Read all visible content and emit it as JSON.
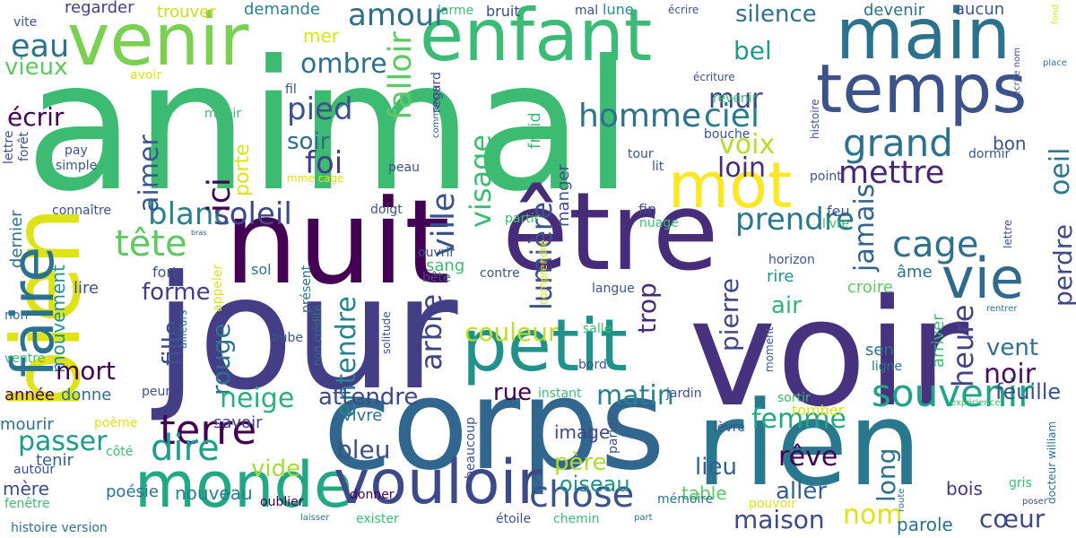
{
  "cloud": {
    "words": [
      {
        "text": "animal",
        "color": "#3dbb73",
        "vertical": false
      },
      {
        "text": "jour",
        "color": "#433e85",
        "vertical": false
      },
      {
        "text": "voir",
        "color": "#46327e",
        "vertical": false
      },
      {
        "text": "corps",
        "color": "#31668e",
        "vertical": false
      },
      {
        "text": "rien",
        "color": "#2a788e",
        "vertical": false
      },
      {
        "text": "nuit",
        "color": "#440154",
        "vertical": false
      },
      {
        "text": "être",
        "color": "#472c7a",
        "vertical": false
      },
      {
        "text": "bien",
        "color": "#dde318",
        "vertical": true
      },
      {
        "text": "enfant",
        "color": "#3bbb75",
        "vertical": false
      },
      {
        "text": "venir",
        "color": "#7ad151",
        "vertical": false
      },
      {
        "text": "main",
        "color": "#2c728e",
        "vertical": false
      },
      {
        "text": "temps",
        "color": "#3b528b",
        "vertical": false
      },
      {
        "text": "petit",
        "color": "#21918c",
        "vertical": false
      },
      {
        "text": "monde",
        "color": "#22a884",
        "vertical": false
      },
      {
        "text": "vouloir",
        "color": "#3e4989",
        "vertical": false
      },
      {
        "text": "faire",
        "color": "#2c728e",
        "vertical": true
      },
      {
        "text": "mot",
        "color": "#fde725",
        "vertical": false
      },
      {
        "text": "vie",
        "color": "#31688e",
        "vertical": false
      },
      {
        "text": "souvenir",
        "color": "#20a386",
        "vertical": false
      },
      {
        "text": "chose",
        "color": "#3b528b",
        "vertical": false
      },
      {
        "text": "grand",
        "color": "#2c728e",
        "vertical": false
      },
      {
        "text": "terre",
        "color": "#440154",
        "vertical": false
      },
      {
        "text": "dire",
        "color": "#1f9e89",
        "vertical": false
      },
      {
        "text": "tête",
        "color": "#5ec962",
        "vertical": false
      },
      {
        "text": "blanc",
        "color": "#26828e",
        "vertical": false
      },
      {
        "text": "soleil",
        "color": "#3e4989",
        "vertical": false
      },
      {
        "text": "prendre",
        "color": "#2a788e",
        "vertical": false
      },
      {
        "text": "cage",
        "color": "#2c728e",
        "vertical": false
      },
      {
        "text": "mettre",
        "color": "#482576",
        "vertical": false
      },
      {
        "text": "ciel",
        "color": "#287c8e",
        "vertical": false
      },
      {
        "text": "homme",
        "color": "#2c728e",
        "vertical": false
      },
      {
        "text": "pied",
        "color": "#3b528b",
        "vertical": false
      },
      {
        "text": "foi",
        "color": "#433e85",
        "vertical": false
      },
      {
        "text": "soir",
        "color": "#306a8e",
        "vertical": false
      },
      {
        "text": "loin",
        "color": "#472d7b",
        "vertical": false
      },
      {
        "text": "voix",
        "color": "#b5de2b",
        "vertical": false
      },
      {
        "text": "mur",
        "color": "#404688",
        "vertical": false
      },
      {
        "text": "bel",
        "color": "#1f9a8a",
        "vertical": false
      },
      {
        "text": "amour",
        "color": "#2e6f8e",
        "vertical": false
      },
      {
        "text": "silence",
        "color": "#2c728e",
        "vertical": false
      },
      {
        "text": "ombre",
        "color": "#2d708e",
        "vertical": false
      },
      {
        "text": "eau",
        "color": "#2c738e",
        "vertical": false
      },
      {
        "text": "vieux",
        "color": "#5ec962",
        "vertical": false
      },
      {
        "text": "écrir",
        "color": "#440154",
        "vertical": false
      },
      {
        "text": "aimer",
        "color": "#38598c",
        "vertical": true
      },
      {
        "text": "ici",
        "color": "#440154",
        "vertical": true
      },
      {
        "text": "falloir",
        "color": "#5ec962",
        "vertical": true
      },
      {
        "text": "visage",
        "color": "#3dbc74",
        "vertical": true
      },
      {
        "text": "ville",
        "color": "#3b528b",
        "vertical": true
      },
      {
        "text": "lumière",
        "color": "#3b528b",
        "vertical": true
      },
      {
        "text": "entendre",
        "color": "#26828e",
        "vertical": true
      },
      {
        "text": "arbre",
        "color": "#414487",
        "vertical": true
      },
      {
        "text": "pierre",
        "color": "#404688",
        "vertical": true
      },
      {
        "text": "trop",
        "color": "#482878",
        "vertical": true
      },
      {
        "text": "jamais",
        "color": "#33638d",
        "vertical": true
      },
      {
        "text": "oeil",
        "color": "#2a788e",
        "vertical": true
      },
      {
        "text": "perdre",
        "color": "#3e4989",
        "vertical": true
      },
      {
        "text": "heure",
        "color": "#414487",
        "vertical": true
      },
      {
        "text": "long",
        "color": "#2c728e",
        "vertical": true
      },
      {
        "text": "rouge",
        "color": "#2c728e",
        "vertical": true
      },
      {
        "text": "fille",
        "color": "#3b528b",
        "vertical": true
      },
      {
        "text": "mouvement",
        "color": "#21918c",
        "vertical": true
      },
      {
        "text": "dernier",
        "color": "#2c728e",
        "vertical": true
      },
      {
        "text": "forme",
        "color": "#433e85",
        "vertical": false
      },
      {
        "text": "air",
        "color": "#34b679",
        "vertical": false
      },
      {
        "text": "couleur",
        "color": "#bddf26",
        "vertical": false
      },
      {
        "text": "mort",
        "color": "#440154",
        "vertical": false
      },
      {
        "text": "neige",
        "color": "#2ab07f",
        "vertical": false
      },
      {
        "text": "attendre",
        "color": "#3e4989",
        "vertical": false
      },
      {
        "text": "matin",
        "color": "#26828e",
        "vertical": false
      },
      {
        "text": "rue",
        "color": "#440154",
        "vertical": false
      },
      {
        "text": "femme",
        "color": "#22a884",
        "vertical": false
      },
      {
        "text": "rêve",
        "color": "#440154",
        "vertical": false
      },
      {
        "text": "noir",
        "color": "#471063",
        "vertical": false
      },
      {
        "text": "vent",
        "color": "#2c728e",
        "vertical": false
      },
      {
        "text": "feuille",
        "color": "#3b528b",
        "vertical": false
      },
      {
        "text": "passer",
        "color": "#1f9a8a",
        "vertical": false
      },
      {
        "text": "bleu",
        "color": "#3b528b",
        "vertical": false
      },
      {
        "text": "vide",
        "color": "#a5db36",
        "vertical": false
      },
      {
        "text": "aller",
        "color": "#34608d",
        "vertical": false
      },
      {
        "text": "lieu",
        "color": "#34608d",
        "vertical": false
      },
      {
        "text": "maison",
        "color": "#3e4989",
        "vertical": false
      },
      {
        "text": "nom",
        "color": "#dde318",
        "vertical": false
      },
      {
        "text": "cœur",
        "color": "#3e4989",
        "vertical": false
      },
      {
        "text": "bois",
        "color": "#46337f",
        "vertical": false
      },
      {
        "text": "père",
        "color": "#addc30",
        "vertical": false
      },
      {
        "text": "oiseau",
        "color": "#21918c",
        "vertical": false
      },
      {
        "text": "image",
        "color": "#3e4989",
        "vertical": false
      },
      {
        "text": "table",
        "color": "#5ec962",
        "vertical": false
      },
      {
        "text": "parole",
        "color": "#2c728e",
        "vertical": false
      },
      {
        "text": "nouveau",
        "color": "#26828e",
        "vertical": false
      },
      {
        "text": "mère",
        "color": "#3e4989",
        "vertical": false
      },
      {
        "text": "poésie",
        "color": "#2c728e",
        "vertical": false
      },
      {
        "text": "tenir",
        "color": "#33638d",
        "vertical": false
      },
      {
        "text": "mourir",
        "color": "#2c728e",
        "vertical": false
      },
      {
        "text": "année",
        "color": "#440154",
        "vertical": false
      },
      {
        "text": "donne",
        "color": "#2e6e8e",
        "vertical": false
      },
      {
        "text": "savoir",
        "color": "#424086",
        "vertical": false
      },
      {
        "text": "vivre",
        "color": "#2d708e",
        "vertical": false
      },
      {
        "text": "tomber",
        "color": "#dde318",
        "vertical": false
      },
      {
        "text": "regarder",
        "color": "#424086",
        "vertical": false
      },
      {
        "text": "trouver",
        "color": "#c8e020",
        "vertical": false
      },
      {
        "text": "demande",
        "color": "#26828e",
        "vertical": false
      },
      {
        "text": "bruit",
        "color": "#3e4989",
        "vertical": false
      },
      {
        "text": "lune",
        "color": "#21918c",
        "vertical": false
      },
      {
        "text": "devenir",
        "color": "#2c728e",
        "vertical": false
      },
      {
        "text": "aucun",
        "color": "#3b528b",
        "vertical": false
      },
      {
        "text": "mer",
        "color": "#dde318",
        "vertical": false
      },
      {
        "text": "bon",
        "color": "#3b528b",
        "vertical": false
      },
      {
        "text": "sang",
        "color": "#3dbb73",
        "vertical": false
      },
      {
        "text": "lire",
        "color": "#3b528b",
        "vertical": false
      },
      {
        "text": "croire",
        "color": "#5ec962",
        "vertical": false
      },
      {
        "text": "âme",
        "color": "#2c728e",
        "vertical": false
      },
      {
        "text": "rire",
        "color": "#21918c",
        "vertical": false
      },
      {
        "text": "sen",
        "color": "#2c728e",
        "vertical": false
      },
      {
        "text": "fort",
        "color": "#3b528b",
        "vertical": false
      },
      {
        "text": "sol",
        "color": "#2c728e",
        "vertical": false
      },
      {
        "text": "feu",
        "color": "#3b528b",
        "vertical": false
      },
      {
        "text": "fin",
        "color": "#3b528b",
        "vertical": false
      },
      {
        "text": "porte",
        "color": "#dde318",
        "vertical": true
      },
      {
        "text": "froid",
        "color": "#3dbb73",
        "vertical": true
      },
      {
        "text": "manger",
        "color": "#3b528b",
        "vertical": true
      },
      {
        "text": "arriver",
        "color": "#3dbb73",
        "vertical": true
      },
      {
        "text": "histoire version",
        "color": "#2c728e",
        "vertical": false
      },
      {
        "text": "fenêtre",
        "color": "#3dbb73",
        "vertical": false
      },
      {
        "text": "autour",
        "color": "#3b528b",
        "vertical": false
      },
      {
        "text": "côté",
        "color": "#3dbb73",
        "vertical": false
      },
      {
        "text": "poème",
        "color": "#dde318",
        "vertical": false
      },
      {
        "text": "peur",
        "color": "#3b528b",
        "vertical": false
      },
      {
        "text": "ventre",
        "color": "#3dbb73",
        "vertical": false
      },
      {
        "text": "non",
        "color": "#2c728e",
        "vertical": false
      },
      {
        "text": "aube",
        "color": "#3b528b",
        "vertical": false
      },
      {
        "text": "bord",
        "color": "#3b528b",
        "vertical": false
      },
      {
        "text": "salle",
        "color": "#3dbb73",
        "vertical": false
      },
      {
        "text": "instant",
        "color": "#3dbb73",
        "vertical": false
      },
      {
        "text": "jardin",
        "color": "#3b528b",
        "vertical": false
      },
      {
        "text": "sortir",
        "color": "#3dbb73",
        "vertical": false
      },
      {
        "text": "ligne",
        "color": "#2c728e",
        "vertical": false
      },
      {
        "text": "langue",
        "color": "#3b528b",
        "vertical": false
      },
      {
        "text": "horizon",
        "color": "#3b528b",
        "vertical": false
      },
      {
        "text": "contre",
        "color": "#3b528b",
        "vertical": false
      },
      {
        "text": "ouvrir",
        "color": "#3b528b",
        "vertical": false
      },
      {
        "text": "bête",
        "color": "#3b528b",
        "vertical": false
      },
      {
        "text": "nuage",
        "color": "#3dbb73",
        "vertical": false
      },
      {
        "text": "livre",
        "color": "#3dbb73",
        "vertical": false
      },
      {
        "text": "doigt",
        "color": "#3b528b",
        "vertical": false
      },
      {
        "text": "partir",
        "color": "#3dbb73",
        "vertical": false
      },
      {
        "text": "connaître",
        "color": "#3b528b",
        "vertical": false
      },
      {
        "text": "appeler",
        "color": "#dde318",
        "vertical": true
      },
      {
        "text": "présent",
        "color": "#2c728e",
        "vertical": true
      },
      {
        "text": "lèvre",
        "color": "#3b528b",
        "vertical": false
      },
      {
        "text": "mémoire",
        "color": "#2c728e",
        "vertical": false
      },
      {
        "text": "pouvoir",
        "color": "#dde318",
        "vertical": false
      },
      {
        "text": "part",
        "color": "#2c728e",
        "vertical": false
      },
      {
        "text": "étoile",
        "color": "#3b528b",
        "vertical": false
      },
      {
        "text": "chemin",
        "color": "#3dbb73",
        "vertical": false
      },
      {
        "text": "exister",
        "color": "#3dbb73",
        "vertical": false
      },
      {
        "text": "laisser",
        "color": "#2c728e",
        "vertical": false
      },
      {
        "text": "oublier",
        "color": "#440154",
        "vertical": false
      },
      {
        "text": "donner",
        "color": "#440154",
        "vertical": false
      },
      {
        "text": "gris",
        "color": "#3dbb73",
        "vertical": false
      },
      {
        "text": "poser",
        "color": "#3b528b",
        "vertical": false
      },
      {
        "text": "expérience",
        "color": "#3dbb73",
        "vertical": false
      },
      {
        "text": "rentrer",
        "color": "#2c728e",
        "vertical": false
      },
      {
        "text": "vite",
        "color": "#3b528b",
        "vertical": false
      },
      {
        "text": "larme",
        "color": "#3dbb73",
        "vertical": false
      },
      {
        "text": "mal",
        "color": "#3b528b",
        "vertical": false
      },
      {
        "text": "écrire",
        "color": "#3b528b",
        "vertical": false
      },
      {
        "text": "avoir",
        "color": "#dde318",
        "vertical": false
      },
      {
        "text": "fil",
        "color": "#3b528b",
        "vertical": false
      },
      {
        "text": "miroir",
        "color": "#3dbb73",
        "vertical": false
      },
      {
        "text": "revenir",
        "color": "#3dbb73",
        "vertical": false
      },
      {
        "text": "écriture",
        "color": "#3b528b",
        "vertical": false
      },
      {
        "text": "bouche",
        "color": "#3b528b",
        "vertical": false
      },
      {
        "text": "tour",
        "color": "#3b528b",
        "vertical": false
      },
      {
        "text": "lit",
        "color": "#3b528b",
        "vertical": false
      },
      {
        "text": "point",
        "color": "#3b528b",
        "vertical": false
      },
      {
        "text": "dormir",
        "color": "#3b528b",
        "vertical": false
      },
      {
        "text": "pay",
        "color": "#3b528b",
        "vertical": false
      },
      {
        "text": "simple",
        "color": "#3b528b",
        "vertical": false
      },
      {
        "text": "peau",
        "color": "#3b528b",
        "vertical": false
      },
      {
        "text": "mme cage",
        "color": "#dde318",
        "vertical": false
      },
      {
        "text": "bras",
        "color": "#3b528b",
        "vertical": false
      },
      {
        "text": "place",
        "color": "#2c728e",
        "vertical": false
      },
      {
        "text": "fond",
        "color": "#dde318",
        "vertical": true
      },
      {
        "text": "écrire nom",
        "color": "#3b528b",
        "vertical": true
      },
      {
        "text": "commencer",
        "color": "#3b528b",
        "vertical": true
      },
      {
        "text": "regard",
        "color": "#3b528b",
        "vertical": true
      },
      {
        "text": "histoire",
        "color": "#3b528b",
        "vertical": true
      },
      {
        "text": "lettre",
        "color": "#3b528b",
        "vertical": true
      },
      {
        "text": "forêt",
        "color": "#3b528b",
        "vertical": true
      },
      {
        "text": "lettre",
        "color": "#3b528b",
        "vertical": true
      },
      {
        "text": "non crédité",
        "color": "#2c728e",
        "vertical": true
      },
      {
        "text": "solitude",
        "color": "#3b528b",
        "vertical": true
      },
      {
        "text": "comprendre",
        "color": "#dde318",
        "vertical": true
      },
      {
        "text": "ailleurs",
        "color": "#2c728e",
        "vertical": true
      },
      {
        "text": "beaucoup",
        "color": "#3b528b",
        "vertical": true
      },
      {
        "text": "parler",
        "color": "#3b528b",
        "vertical": true
      },
      {
        "text": "moment",
        "color": "#3b528b",
        "vertical": true
      },
      {
        "text": "route",
        "color": "#2c728e",
        "vertical": true
      },
      {
        "text": "docteur william",
        "color": "#2c728e",
        "vertical": true
      }
    ]
  }
}
